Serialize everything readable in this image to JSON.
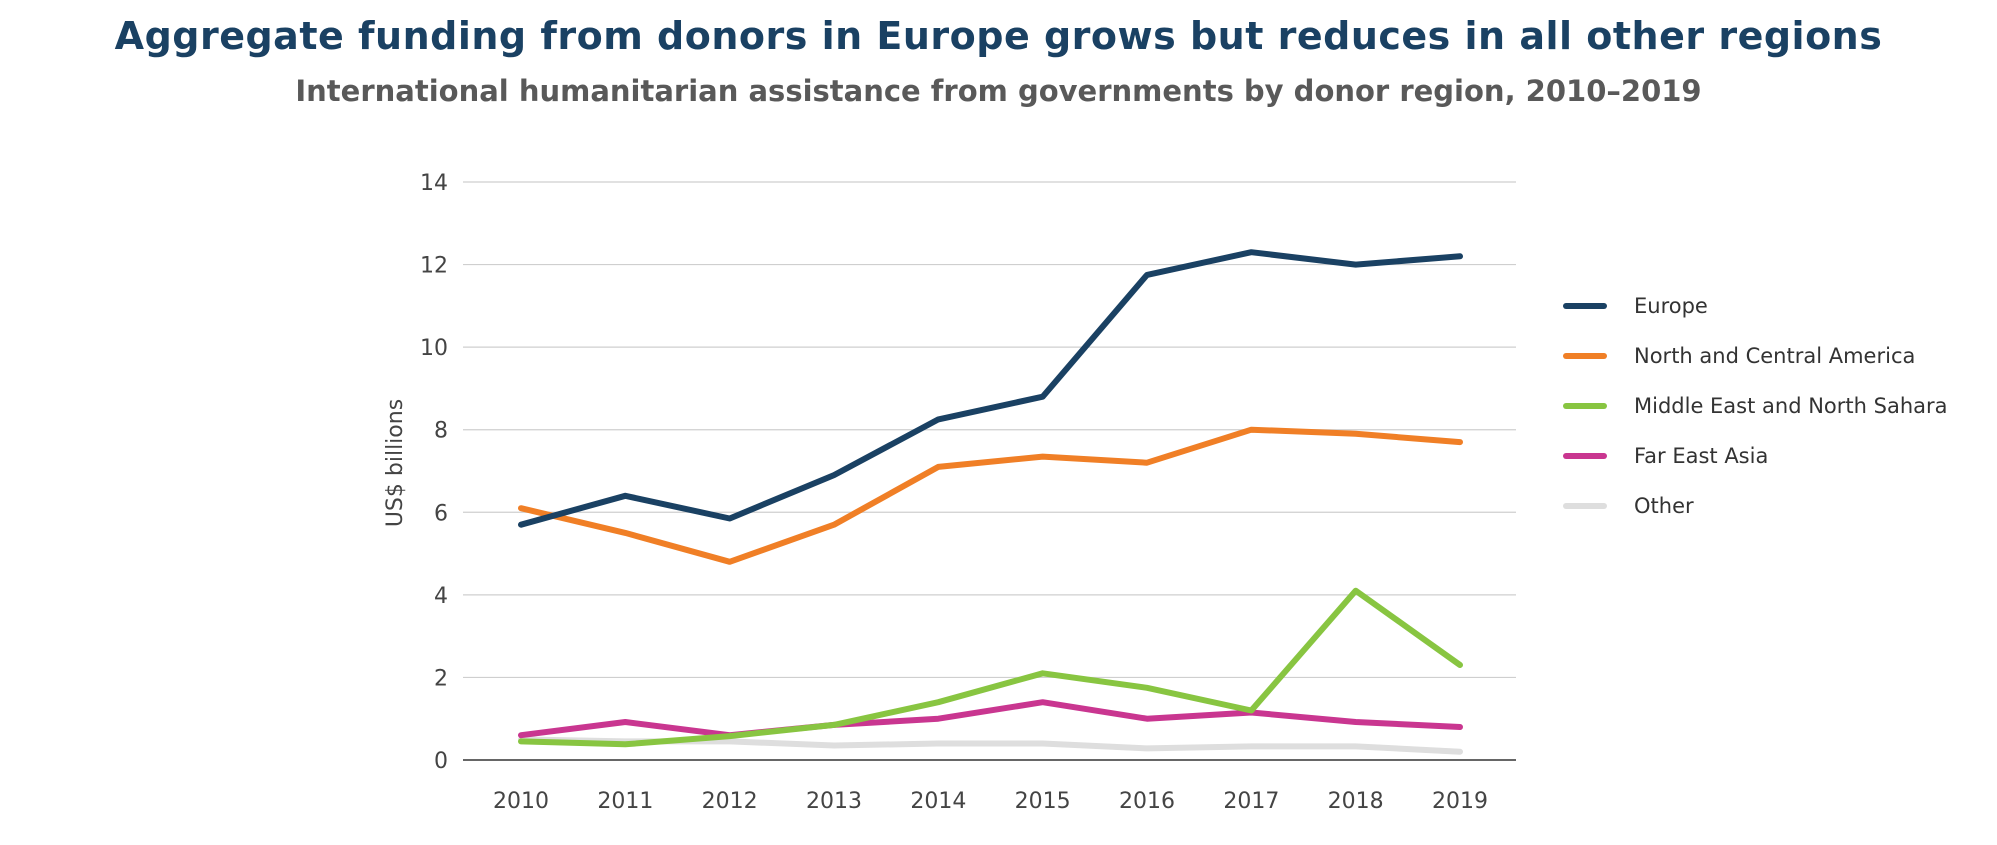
{
  "chart_data": {
    "type": "line",
    "title": "Aggregate funding from donors in Europe grows but reduces in all other regions",
    "subtitle": "International humanitarian assistance from governments by donor region, 2010–2019",
    "xlabel": "",
    "ylabel": "US$ billions",
    "ylim": [
      0,
      14
    ],
    "yticks": [
      "0",
      "2",
      "4",
      "6",
      "8",
      "10",
      "12",
      "14"
    ],
    "categories": [
      "2010",
      "2011",
      "2012",
      "2013",
      "2014",
      "2015",
      "2016",
      "2017",
      "2018",
      "2019"
    ],
    "grid": true,
    "legend_position": "right",
    "series": [
      {
        "name": "Europe",
        "color": "#1a4163",
        "values": [
          5.7,
          6.4,
          5.85,
          6.9,
          8.25,
          8.8,
          11.75,
          12.3,
          12.0,
          12.2
        ]
      },
      {
        "name": "North and Central America",
        "color": "#f07f26",
        "values": [
          6.1,
          5.5,
          4.8,
          5.7,
          7.1,
          7.35,
          7.2,
          8.0,
          7.9,
          7.7
        ]
      },
      {
        "name": "Middle East and North Sahara",
        "color": "#88c541",
        "values": [
          0.45,
          0.38,
          0.58,
          0.85,
          1.4,
          2.1,
          1.75,
          1.2,
          4.1,
          2.3
        ]
      },
      {
        "name": "Far East Asia",
        "color": "#c93690",
        "values": [
          0.6,
          0.92,
          0.6,
          0.85,
          1.0,
          1.4,
          1.0,
          1.15,
          0.92,
          0.8
        ]
      },
      {
        "name": "Other",
        "color": "#dedede",
        "values": [
          0.5,
          0.45,
          0.45,
          0.35,
          0.4,
          0.4,
          0.28,
          0.33,
          0.33,
          0.2
        ]
      }
    ]
  }
}
